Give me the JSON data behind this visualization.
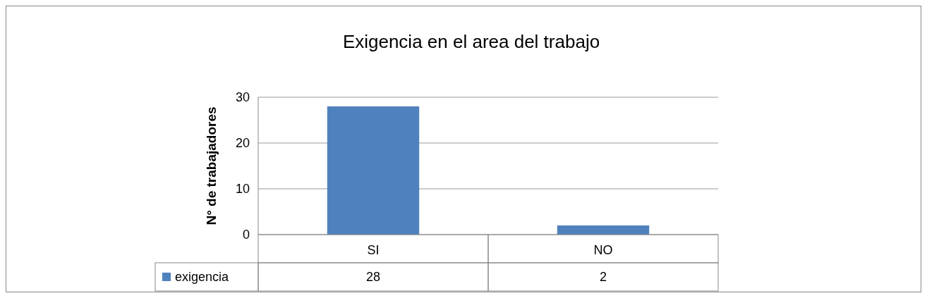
{
  "chart_data": {
    "type": "bar",
    "title": "Exigencia en el area del trabajo",
    "ylabel": "N° de trabajadores",
    "categories": [
      "SI",
      "NO"
    ],
    "series": [
      {
        "name": "exigencia",
        "color": "#4f81bd",
        "values": [
          28,
          2
        ]
      }
    ],
    "ylim": [
      0,
      30
    ],
    "yticks": [
      0,
      10,
      20,
      30
    ],
    "grid": "y",
    "legend": "bottom",
    "data_labels": true
  }
}
